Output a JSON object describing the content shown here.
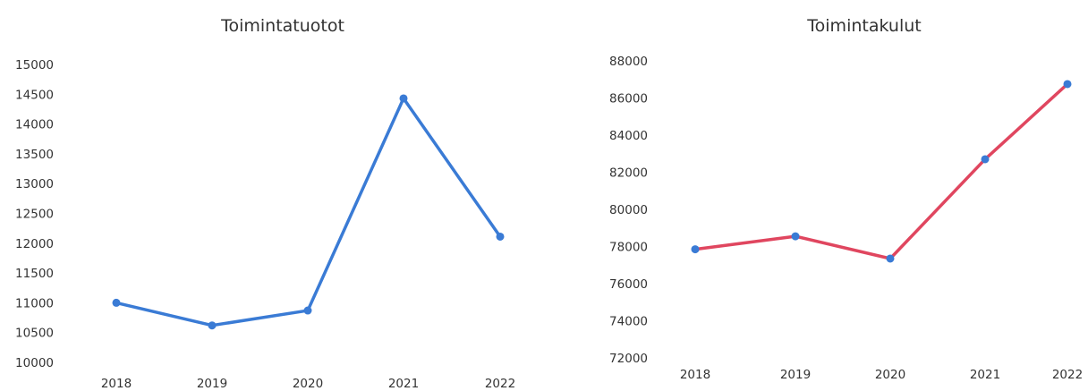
{
  "chart_data": [
    {
      "type": "line",
      "title": "Toimintatuotot",
      "xlabel": "",
      "ylabel": "",
      "categories": [
        "2018",
        "2019",
        "2020",
        "2021",
        "2022"
      ],
      "series": [
        {
          "values": [
            11000,
            10620,
            10870,
            14430,
            12110
          ],
          "color": "#3a7bd5"
        }
      ],
      "ylim": [
        10000,
        15000
      ],
      "yticks": [
        "10000",
        "10500",
        "11000",
        "11500",
        "12000",
        "12500",
        "13000",
        "13500",
        "14000",
        "14500",
        "15000"
      ],
      "grid": false,
      "legend": "none"
    },
    {
      "type": "line",
      "title": "Toimintakulut",
      "xlabel": "",
      "ylabel": "",
      "categories": [
        "2018",
        "2019",
        "2020",
        "2021",
        "2022"
      ],
      "series": [
        {
          "values": [
            77850,
            78550,
            77350,
            82700,
            86750
          ],
          "color": "#e0465f",
          "marker_color": "#3a7bd5"
        }
      ],
      "ylim": [
        72000,
        88000
      ],
      "yticks": [
        "72000",
        "74000",
        "76000",
        "78000",
        "80000",
        "82000",
        "84000",
        "86000",
        "88000"
      ],
      "grid": false,
      "legend": "none"
    }
  ]
}
